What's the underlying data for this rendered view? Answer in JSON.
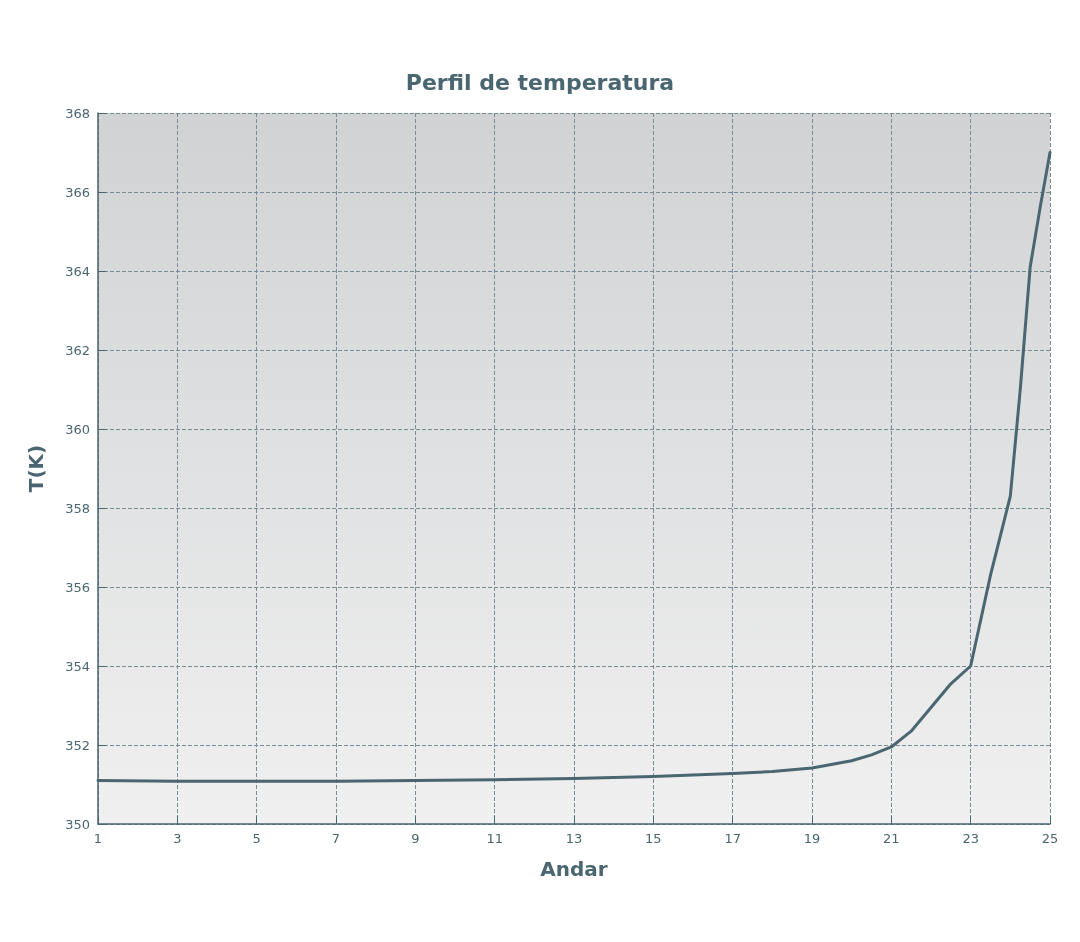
{
  "chart_data": {
    "type": "line",
    "title": "Perfil de temperatura",
    "xlabel": "Andar",
    "ylabel": "T(K)",
    "series": [
      {
        "color": "#4a6670",
        "x": [
          1,
          3,
          5,
          7,
          9,
          11,
          13,
          15,
          17,
          18,
          19,
          20,
          20.5,
          21,
          21.5,
          22,
          22.5,
          23,
          23.5,
          24,
          24.25,
          24.5,
          24.75,
          25
        ],
        "values": [
          351.1,
          351.08,
          351.08,
          351.08,
          351.1,
          351.12,
          351.15,
          351.2,
          351.28,
          351.33,
          351.42,
          351.6,
          351.75,
          351.95,
          352.35,
          352.95,
          353.55,
          354.0,
          356.3,
          358.3,
          361.0,
          364.1,
          365.6,
          367.0
        ]
      }
    ],
    "xlim": [
      1,
      25
    ],
    "xticks": [
      1,
      3,
      5,
      7,
      9,
      11,
      13,
      15,
      17,
      19,
      21,
      23,
      25
    ],
    "ylim": [
      350,
      368
    ],
    "yticks": [
      350,
      352,
      354,
      356,
      358,
      360,
      362,
      364,
      366,
      368
    ],
    "grid": true,
    "marker": "none",
    "line_style": "solid"
  }
}
